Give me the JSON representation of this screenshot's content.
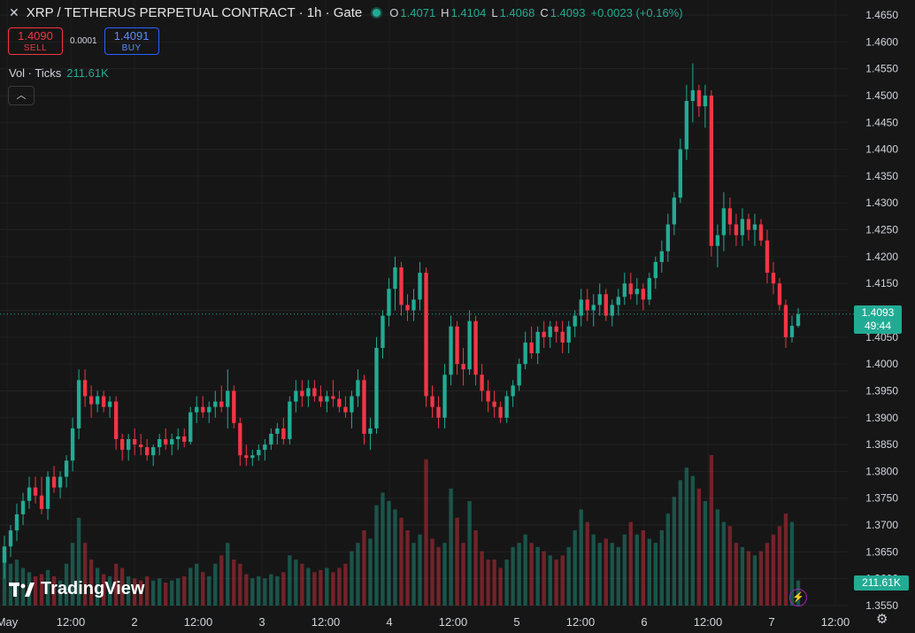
{
  "header": {
    "title": "XRP / TETHERUS PERPETUAL CONTRACT · 1h · Gate",
    "ohlc": {
      "o_label": "O",
      "o": "1.4071",
      "h_label": "H",
      "h": "1.4104",
      "l_label": "L",
      "l": "1.4068",
      "c_label": "C",
      "c": "1.4093",
      "change": "+0.0023 (+0.16%)"
    }
  },
  "trade": {
    "sell_price": "1.4090",
    "sell_label": "SELL",
    "spread": "0.0001",
    "buy_price": "1.4091",
    "buy_label": "BUY"
  },
  "volume": {
    "label": "Vol · Ticks",
    "value": "211.61K",
    "axis_value": "211.61K"
  },
  "last_price": {
    "price": "1.4093",
    "countdown": "49:44"
  },
  "branding": {
    "logo_text": "TradingView"
  },
  "colors": {
    "up": "#22ab94",
    "down": "#f23645",
    "background": "#161616"
  },
  "icons": {
    "close": "close-icon",
    "collapse": "chevron-up-icon",
    "replay": "lightning-icon",
    "settings": "gear-icon"
  },
  "chart_data": {
    "type": "candlestick",
    "title": "XRP / TETHERUS PERPETUAL CONTRACT · 1h · Gate",
    "ylim": [
      1.355,
      1.465
    ],
    "y_ticks": [
      "1.4650",
      "1.4600",
      "1.4550",
      "1.4500",
      "1.4450",
      "1.4400",
      "1.4350",
      "1.4300",
      "1.4250",
      "1.4200",
      "1.4150",
      "1.4100",
      "1.4050",
      "1.4000",
      "1.3950",
      "1.3900",
      "1.3850",
      "1.3800",
      "1.3750",
      "1.3700",
      "1.3650",
      "1.3600",
      "1.3550"
    ],
    "x_ticks": [
      "May",
      "12:00",
      "2",
      "12:00",
      "3",
      "12:00",
      "4",
      "12:00",
      "5",
      "12:00",
      "6",
      "12:00",
      "7",
      "12:00"
    ],
    "candles": [
      [
        1.363,
        1.368,
        1.36,
        1.366,
        24
      ],
      [
        1.366,
        1.37,
        1.364,
        1.369,
        20
      ],
      [
        1.369,
        1.374,
        1.367,
        1.372,
        22
      ],
      [
        1.372,
        1.376,
        1.37,
        1.3745,
        18
      ],
      [
        1.3745,
        1.379,
        1.373,
        1.377,
        16
      ],
      [
        1.377,
        1.379,
        1.374,
        1.3755,
        14
      ],
      [
        1.3755,
        1.379,
        1.372,
        1.373,
        15
      ],
      [
        1.373,
        1.38,
        1.371,
        1.379,
        17
      ],
      [
        1.379,
        1.381,
        1.376,
        1.377,
        14
      ],
      [
        1.377,
        1.38,
        1.375,
        1.379,
        12
      ],
      [
        1.379,
        1.383,
        1.377,
        1.382,
        20
      ],
      [
        1.382,
        1.39,
        1.38,
        1.388,
        30
      ],
      [
        1.388,
        1.399,
        1.386,
        1.397,
        42
      ],
      [
        1.397,
        1.399,
        1.392,
        1.394,
        30
      ],
      [
        1.394,
        1.396,
        1.39,
        1.3925,
        22
      ],
      [
        1.3925,
        1.395,
        1.391,
        1.394,
        18
      ],
      [
        1.394,
        1.395,
        1.391,
        1.392,
        15
      ],
      [
        1.392,
        1.394,
        1.39,
        1.393,
        14
      ],
      [
        1.393,
        1.394,
        1.384,
        1.386,
        20
      ],
      [
        1.386,
        1.387,
        1.382,
        1.384,
        18
      ],
      [
        1.384,
        1.387,
        1.382,
        1.386,
        14
      ],
      [
        1.386,
        1.388,
        1.383,
        1.385,
        13
      ],
      [
        1.385,
        1.387,
        1.383,
        1.3845,
        12
      ],
      [
        1.3845,
        1.386,
        1.382,
        1.383,
        14
      ],
      [
        1.383,
        1.385,
        1.381,
        1.3845,
        12
      ],
      [
        1.3845,
        1.387,
        1.383,
        1.386,
        13
      ],
      [
        1.386,
        1.388,
        1.384,
        1.385,
        11
      ],
      [
        1.385,
        1.387,
        1.383,
        1.386,
        12
      ],
      [
        1.386,
        1.388,
        1.384,
        1.3865,
        13
      ],
      [
        1.3865,
        1.388,
        1.3845,
        1.3855,
        14
      ],
      [
        1.3855,
        1.392,
        1.385,
        1.391,
        18
      ],
      [
        1.391,
        1.394,
        1.389,
        1.392,
        20
      ],
      [
        1.392,
        1.394,
        1.39,
        1.391,
        16
      ],
      [
        1.391,
        1.393,
        1.389,
        1.392,
        14
      ],
      [
        1.392,
        1.395,
        1.39,
        1.393,
        20
      ],
      [
        1.393,
        1.396,
        1.391,
        1.392,
        24
      ],
      [
        1.392,
        1.399,
        1.388,
        1.395,
        30
      ],
      [
        1.395,
        1.396,
        1.388,
        1.389,
        22
      ],
      [
        1.389,
        1.39,
        1.381,
        1.383,
        20
      ],
      [
        1.383,
        1.385,
        1.381,
        1.3825,
        15
      ],
      [
        1.3825,
        1.384,
        1.381,
        1.383,
        13
      ],
      [
        1.383,
        1.385,
        1.382,
        1.384,
        14
      ],
      [
        1.384,
        1.386,
        1.382,
        1.385,
        13
      ],
      [
        1.385,
        1.388,
        1.384,
        1.387,
        15
      ],
      [
        1.387,
        1.389,
        1.385,
        1.388,
        14
      ],
      [
        1.388,
        1.39,
        1.385,
        1.386,
        16
      ],
      [
        1.386,
        1.394,
        1.385,
        1.393,
        24
      ],
      [
        1.393,
        1.397,
        1.391,
        1.395,
        22
      ],
      [
        1.395,
        1.397,
        1.392,
        1.394,
        20
      ],
      [
        1.394,
        1.397,
        1.392,
        1.3955,
        18
      ],
      [
        1.3955,
        1.397,
        1.393,
        1.394,
        16
      ],
      [
        1.394,
        1.396,
        1.392,
        1.393,
        17
      ],
      [
        1.393,
        1.395,
        1.391,
        1.394,
        18
      ],
      [
        1.394,
        1.397,
        1.392,
        1.3935,
        16
      ],
      [
        1.3935,
        1.395,
        1.391,
        1.392,
        18
      ],
      [
        1.392,
        1.394,
        1.39,
        1.391,
        20
      ],
      [
        1.391,
        1.395,
        1.388,
        1.394,
        26
      ],
      [
        1.394,
        1.399,
        1.392,
        1.397,
        30
      ],
      [
        1.397,
        1.398,
        1.385,
        1.387,
        36
      ],
      [
        1.387,
        1.39,
        1.384,
        1.388,
        32
      ],
      [
        1.388,
        1.405,
        1.387,
        1.403,
        48
      ],
      [
        1.403,
        1.41,
        1.401,
        1.409,
        54
      ],
      [
        1.409,
        1.416,
        1.407,
        1.414,
        50
      ],
      [
        1.414,
        1.42,
        1.41,
        1.418,
        46
      ],
      [
        1.418,
        1.419,
        1.409,
        1.411,
        42
      ],
      [
        1.411,
        1.413,
        1.408,
        1.41,
        36
      ],
      [
        1.41,
        1.414,
        1.408,
        1.412,
        30
      ],
      [
        1.412,
        1.419,
        1.41,
        1.417,
        34
      ],
      [
        1.417,
        1.418,
        1.392,
        1.394,
        70
      ],
      [
        1.394,
        1.396,
        1.39,
        1.392,
        32
      ],
      [
        1.392,
        1.394,
        1.388,
        1.39,
        28
      ],
      [
        1.39,
        1.4,
        1.388,
        1.398,
        30
      ],
      [
        1.398,
        1.409,
        1.396,
        1.407,
        56
      ],
      [
        1.407,
        1.408,
        1.398,
        1.4,
        42
      ],
      [
        1.4,
        1.403,
        1.396,
        1.399,
        30
      ],
      [
        1.399,
        1.41,
        1.398,
        1.408,
        50
      ],
      [
        1.408,
        1.409,
        1.396,
        1.398,
        36
      ],
      [
        1.398,
        1.4,
        1.393,
        1.395,
        26
      ],
      [
        1.395,
        1.397,
        1.391,
        1.393,
        22
      ],
      [
        1.393,
        1.395,
        1.39,
        1.392,
        22
      ],
      [
        1.392,
        1.393,
        1.389,
        1.39,
        18
      ],
      [
        1.39,
        1.395,
        1.389,
        1.394,
        22
      ],
      [
        1.394,
        1.397,
        1.392,
        1.396,
        28
      ],
      [
        1.396,
        1.401,
        1.395,
        1.4,
        30
      ],
      [
        1.4,
        1.406,
        1.399,
        1.404,
        34
      ],
      [
        1.404,
        1.407,
        1.401,
        1.402,
        30
      ],
      [
        1.402,
        1.407,
        1.4,
        1.406,
        28
      ],
      [
        1.406,
        1.408,
        1.403,
        1.405,
        26
      ],
      [
        1.405,
        1.408,
        1.403,
        1.407,
        24
      ],
      [
        1.407,
        1.408,
        1.404,
        1.406,
        22
      ],
      [
        1.406,
        1.408,
        1.402,
        1.404,
        24
      ],
      [
        1.404,
        1.408,
        1.402,
        1.407,
        28
      ],
      [
        1.407,
        1.41,
        1.405,
        1.409,
        36
      ],
      [
        1.409,
        1.414,
        1.407,
        1.412,
        46
      ],
      [
        1.412,
        1.414,
        1.408,
        1.41,
        40
      ],
      [
        1.41,
        1.413,
        1.407,
        1.411,
        34
      ],
      [
        1.411,
        1.415,
        1.409,
        1.413,
        30
      ],
      [
        1.413,
        1.414,
        1.408,
        1.409,
        32
      ],
      [
        1.409,
        1.412,
        1.407,
        1.411,
        30
      ],
      [
        1.411,
        1.414,
        1.409,
        1.4125,
        28
      ],
      [
        1.4125,
        1.417,
        1.411,
        1.415,
        34
      ],
      [
        1.415,
        1.417,
        1.412,
        1.413,
        40
      ],
      [
        1.413,
        1.416,
        1.411,
        1.414,
        34
      ],
      [
        1.414,
        1.415,
        1.41,
        1.412,
        36
      ],
      [
        1.412,
        1.417,
        1.411,
        1.416,
        32
      ],
      [
        1.416,
        1.42,
        1.414,
        1.419,
        30
      ],
      [
        1.419,
        1.423,
        1.417,
        1.421,
        36
      ],
      [
        1.421,
        1.428,
        1.419,
        1.426,
        44
      ],
      [
        1.426,
        1.432,
        1.424,
        1.431,
        52
      ],
      [
        1.431,
        1.442,
        1.43,
        1.44,
        60
      ],
      [
        1.44,
        1.452,
        1.438,
        1.449,
        66
      ],
      [
        1.449,
        1.456,
        1.445,
        1.451,
        62
      ],
      [
        1.451,
        1.452,
        1.446,
        1.448,
        56
      ],
      [
        1.448,
        1.452,
        1.444,
        1.45,
        50
      ],
      [
        1.45,
        1.451,
        1.42,
        1.422,
        72
      ],
      [
        1.422,
        1.426,
        1.418,
        1.424,
        46
      ],
      [
        1.424,
        1.432,
        1.421,
        1.429,
        40
      ],
      [
        1.429,
        1.431,
        1.424,
        1.426,
        38
      ],
      [
        1.426,
        1.428,
        1.422,
        1.424,
        30
      ],
      [
        1.424,
        1.429,
        1.422,
        1.427,
        28
      ],
      [
        1.427,
        1.428,
        1.423,
        1.425,
        26
      ],
      [
        1.425,
        1.428,
        1.422,
        1.426,
        24
      ],
      [
        1.426,
        1.427,
        1.422,
        1.423,
        26
      ],
      [
        1.423,
        1.425,
        1.415,
        1.417,
        30
      ],
      [
        1.417,
        1.419,
        1.413,
        1.415,
        34
      ],
      [
        1.415,
        1.416,
        1.41,
        1.411,
        38
      ],
      [
        1.411,
        1.412,
        1.403,
        1.405,
        44
      ],
      [
        1.405,
        1.409,
        1.404,
        1.4071,
        40
      ],
      [
        1.4071,
        1.4104,
        1.4068,
        1.4093,
        12
      ]
    ]
  }
}
